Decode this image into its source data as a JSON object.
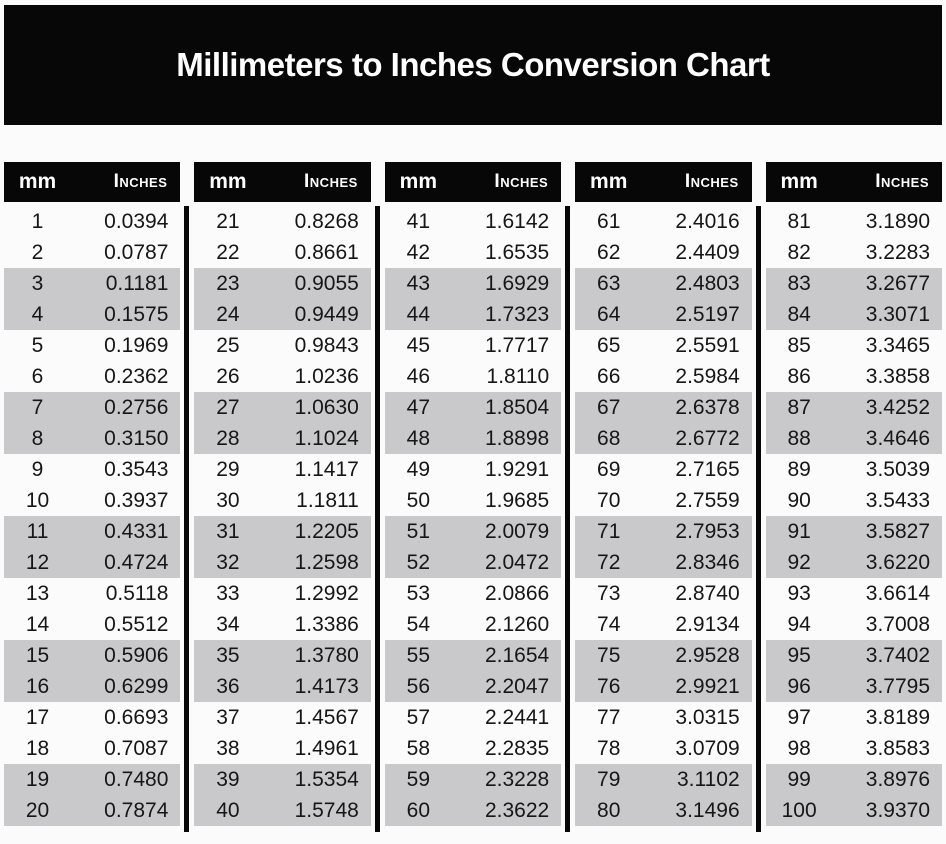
{
  "title": "Millimeters to Inches Conversion Chart",
  "table": {
    "column_headers": {
      "mm": "mm",
      "inches": "Inches"
    }
  },
  "colors": {
    "black": "#070707",
    "stripe_gray": "#c9c9cc",
    "background": "#fbfbfb",
    "text": "#161616",
    "header_text": "#ffffff"
  },
  "chart_data": {
    "type": "table",
    "title": "Millimeters to Inches Conversion Chart",
    "column_headers": [
      "mm",
      "Inches"
    ],
    "layout_hints": {
      "column_group_count": 5,
      "rows_per_group": 20,
      "row_shading": "rows in pairs: 2 white rows then 2 gray rows, repeating"
    },
    "column_groups": [
      {
        "rows": [
          [
            "1",
            "0.0394"
          ],
          [
            "2",
            "0.0787"
          ],
          [
            "3",
            "0.1181"
          ],
          [
            "4",
            "0.1575"
          ],
          [
            "5",
            "0.1969"
          ],
          [
            "6",
            "0.2362"
          ],
          [
            "7",
            "0.2756"
          ],
          [
            "8",
            "0.3150"
          ],
          [
            "9",
            "0.3543"
          ],
          [
            "10",
            "0.3937"
          ],
          [
            "11",
            "0.4331"
          ],
          [
            "12",
            "0.4724"
          ],
          [
            "13",
            "0.5118"
          ],
          [
            "14",
            "0.5512"
          ],
          [
            "15",
            "0.5906"
          ],
          [
            "16",
            "0.6299"
          ],
          [
            "17",
            "0.6693"
          ],
          [
            "18",
            "0.7087"
          ],
          [
            "19",
            "0.7480"
          ],
          [
            "20",
            "0.7874"
          ]
        ]
      },
      {
        "rows": [
          [
            "21",
            "0.8268"
          ],
          [
            "22",
            "0.8661"
          ],
          [
            "23",
            "0.9055"
          ],
          [
            "24",
            "0.9449"
          ],
          [
            "25",
            "0.9843"
          ],
          [
            "26",
            "1.0236"
          ],
          [
            "27",
            "1.0630"
          ],
          [
            "28",
            "1.1024"
          ],
          [
            "29",
            "1.1417"
          ],
          [
            "30",
            "1.1811"
          ],
          [
            "31",
            "1.2205"
          ],
          [
            "32",
            "1.2598"
          ],
          [
            "33",
            "1.2992"
          ],
          [
            "34",
            "1.3386"
          ],
          [
            "35",
            "1.3780"
          ],
          [
            "36",
            "1.4173"
          ],
          [
            "37",
            "1.4567"
          ],
          [
            "38",
            "1.4961"
          ],
          [
            "39",
            "1.5354"
          ],
          [
            "40",
            "1.5748"
          ]
        ]
      },
      {
        "rows": [
          [
            "41",
            "1.6142"
          ],
          [
            "42",
            "1.6535"
          ],
          [
            "43",
            "1.6929"
          ],
          [
            "44",
            "1.7323"
          ],
          [
            "45",
            "1.7717"
          ],
          [
            "46",
            "1.8110"
          ],
          [
            "47",
            "1.8504"
          ],
          [
            "48",
            "1.8898"
          ],
          [
            "49",
            "1.9291"
          ],
          [
            "50",
            "1.9685"
          ],
          [
            "51",
            "2.0079"
          ],
          [
            "52",
            "2.0472"
          ],
          [
            "53",
            "2.0866"
          ],
          [
            "54",
            "2.1260"
          ],
          [
            "55",
            "2.1654"
          ],
          [
            "56",
            "2.2047"
          ],
          [
            "57",
            "2.2441"
          ],
          [
            "58",
            "2.2835"
          ],
          [
            "59",
            "2.3228"
          ],
          [
            "60",
            "2.3622"
          ]
        ]
      },
      {
        "rows": [
          [
            "61",
            "2.4016"
          ],
          [
            "62",
            "2.4409"
          ],
          [
            "63",
            "2.4803"
          ],
          [
            "64",
            "2.5197"
          ],
          [
            "65",
            "2.5591"
          ],
          [
            "66",
            "2.5984"
          ],
          [
            "67",
            "2.6378"
          ],
          [
            "68",
            "2.6772"
          ],
          [
            "69",
            "2.7165"
          ],
          [
            "70",
            "2.7559"
          ],
          [
            "71",
            "2.7953"
          ],
          [
            "72",
            "2.8346"
          ],
          [
            "73",
            "2.8740"
          ],
          [
            "74",
            "2.9134"
          ],
          [
            "75",
            "2.9528"
          ],
          [
            "76",
            "2.9921"
          ],
          [
            "77",
            "3.0315"
          ],
          [
            "78",
            "3.0709"
          ],
          [
            "79",
            "3.1102"
          ],
          [
            "80",
            "3.1496"
          ]
        ]
      },
      {
        "rows": [
          [
            "81",
            "3.1890"
          ],
          [
            "82",
            "3.2283"
          ],
          [
            "83",
            "3.2677"
          ],
          [
            "84",
            "3.3071"
          ],
          [
            "85",
            "3.3465"
          ],
          [
            "86",
            "3.3858"
          ],
          [
            "87",
            "3.4252"
          ],
          [
            "88",
            "3.4646"
          ],
          [
            "89",
            "3.5039"
          ],
          [
            "90",
            "3.5433"
          ],
          [
            "91",
            "3.5827"
          ],
          [
            "92",
            "3.6220"
          ],
          [
            "93",
            "3.6614"
          ],
          [
            "94",
            "3.7008"
          ],
          [
            "95",
            "3.7402"
          ],
          [
            "96",
            "3.7795"
          ],
          [
            "97",
            "3.8189"
          ],
          [
            "98",
            "3.8583"
          ],
          [
            "99",
            "3.8976"
          ],
          [
            "100",
            "3.9370"
          ]
        ]
      }
    ]
  }
}
